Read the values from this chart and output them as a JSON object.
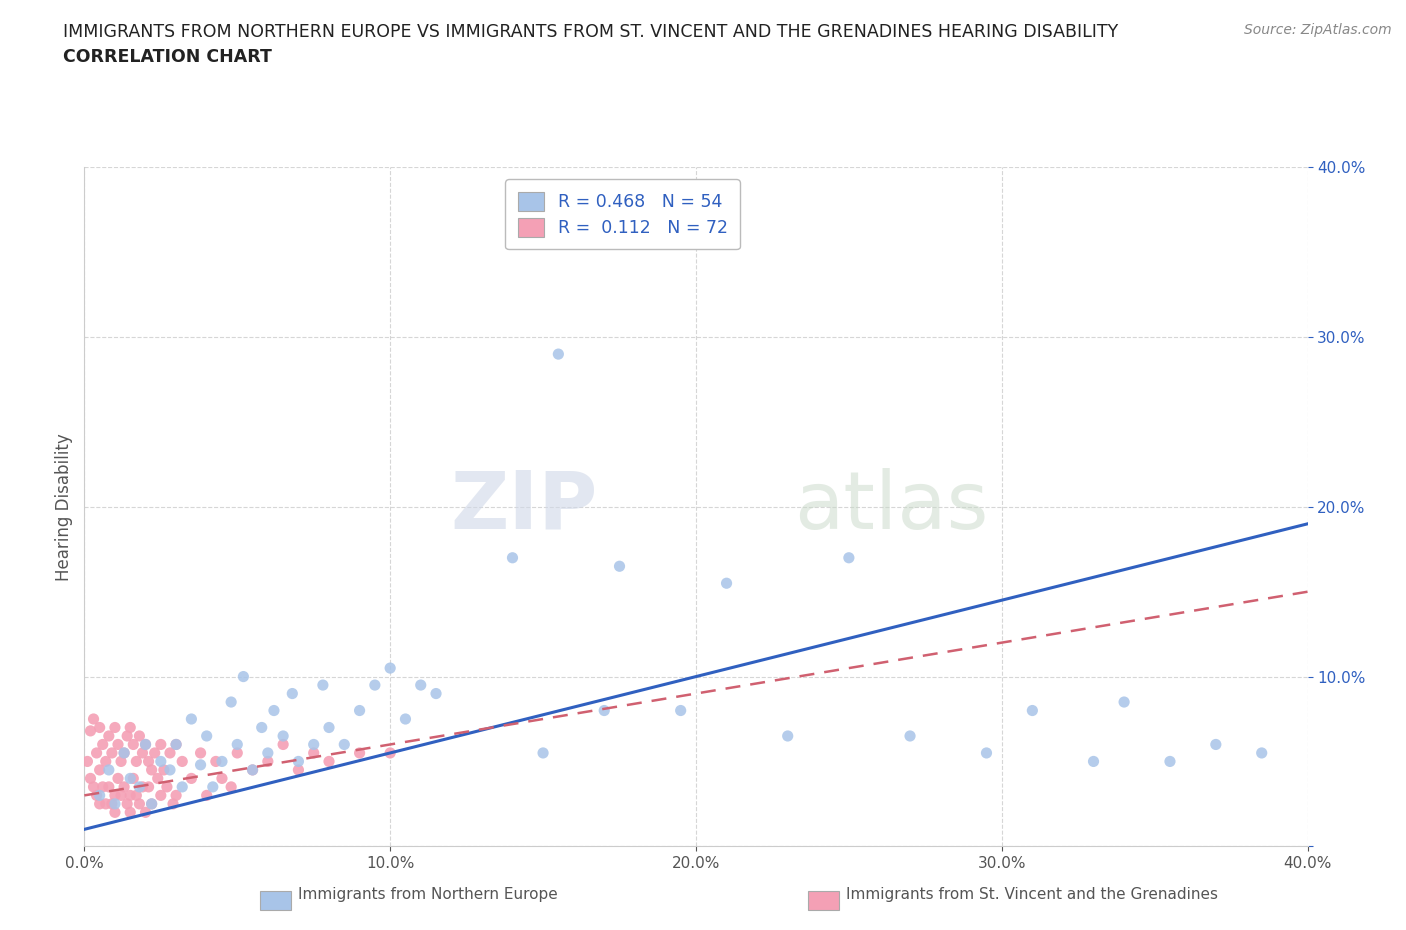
{
  "title_line1": "IMMIGRANTS FROM NORTHERN EUROPE VS IMMIGRANTS FROM ST. VINCENT AND THE GRENADINES HEARING DISABILITY",
  "title_line2": "CORRELATION CHART",
  "source": "Source: ZipAtlas.com",
  "watermark_zip": "ZIP",
  "watermark_atlas": "atlas",
  "ylabel": "Hearing Disability",
  "xlim": [
    0.0,
    0.4
  ],
  "ylim": [
    0.0,
    0.4
  ],
  "xticks": [
    0.0,
    0.1,
    0.2,
    0.3,
    0.4
  ],
  "yticks": [
    0.0,
    0.1,
    0.2,
    0.3,
    0.4
  ],
  "xtick_labels": [
    "0.0%",
    "10.0%",
    "20.0%",
    "30.0%",
    "40.0%"
  ],
  "ytick_labels": [
    "",
    "10.0%",
    "20.0%",
    "30.0%",
    "40.0%"
  ],
  "blue_R": 0.468,
  "blue_N": 54,
  "pink_R": 0.112,
  "pink_N": 72,
  "blue_color": "#a8c4e8",
  "pink_color": "#f4a0b5",
  "blue_line_color": "#3060c0",
  "pink_line_color": "#d06070",
  "legend_blue_label": "R = 0.468   N = 54",
  "legend_pink_label": "R =  0.112   N = 72",
  "blue_scatter_x": [
    0.005,
    0.008,
    0.01,
    0.013,
    0.015,
    0.018,
    0.02,
    0.022,
    0.025,
    0.028,
    0.03,
    0.032,
    0.035,
    0.038,
    0.04,
    0.042,
    0.045,
    0.048,
    0.05,
    0.052,
    0.055,
    0.058,
    0.06,
    0.062,
    0.065,
    0.068,
    0.07,
    0.075,
    0.078,
    0.08,
    0.085,
    0.09,
    0.095,
    0.1,
    0.105,
    0.11,
    0.115,
    0.14,
    0.15,
    0.17,
    0.21,
    0.23,
    0.25,
    0.155,
    0.175,
    0.195,
    0.27,
    0.295,
    0.31,
    0.33,
    0.34,
    0.355,
    0.37,
    0.385
  ],
  "blue_scatter_y": [
    0.03,
    0.045,
    0.025,
    0.055,
    0.04,
    0.035,
    0.06,
    0.025,
    0.05,
    0.045,
    0.06,
    0.035,
    0.075,
    0.048,
    0.065,
    0.035,
    0.05,
    0.085,
    0.06,
    0.1,
    0.045,
    0.07,
    0.055,
    0.08,
    0.065,
    0.09,
    0.05,
    0.06,
    0.095,
    0.07,
    0.06,
    0.08,
    0.095,
    0.105,
    0.075,
    0.095,
    0.09,
    0.17,
    0.055,
    0.08,
    0.155,
    0.065,
    0.17,
    0.29,
    0.165,
    0.08,
    0.065,
    0.055,
    0.08,
    0.05,
    0.085,
    0.05,
    0.06,
    0.055
  ],
  "pink_scatter_x": [
    0.001,
    0.002,
    0.002,
    0.003,
    0.003,
    0.004,
    0.004,
    0.005,
    0.005,
    0.005,
    0.006,
    0.006,
    0.007,
    0.007,
    0.008,
    0.008,
    0.009,
    0.009,
    0.01,
    0.01,
    0.01,
    0.011,
    0.011,
    0.012,
    0.012,
    0.013,
    0.013,
    0.014,
    0.014,
    0.015,
    0.015,
    0.015,
    0.016,
    0.016,
    0.017,
    0.017,
    0.018,
    0.018,
    0.019,
    0.019,
    0.02,
    0.02,
    0.021,
    0.021,
    0.022,
    0.022,
    0.023,
    0.024,
    0.025,
    0.025,
    0.026,
    0.027,
    0.028,
    0.029,
    0.03,
    0.03,
    0.032,
    0.035,
    0.038,
    0.04,
    0.043,
    0.045,
    0.048,
    0.05,
    0.055,
    0.06,
    0.065,
    0.07,
    0.075,
    0.08,
    0.09,
    0.1
  ],
  "pink_scatter_y": [
    0.05,
    0.068,
    0.04,
    0.075,
    0.035,
    0.055,
    0.03,
    0.07,
    0.045,
    0.025,
    0.06,
    0.035,
    0.05,
    0.025,
    0.065,
    0.035,
    0.055,
    0.025,
    0.07,
    0.03,
    0.02,
    0.06,
    0.04,
    0.05,
    0.03,
    0.055,
    0.035,
    0.065,
    0.025,
    0.07,
    0.03,
    0.02,
    0.06,
    0.04,
    0.05,
    0.03,
    0.065,
    0.025,
    0.055,
    0.035,
    0.06,
    0.02,
    0.05,
    0.035,
    0.045,
    0.025,
    0.055,
    0.04,
    0.03,
    0.06,
    0.045,
    0.035,
    0.055,
    0.025,
    0.06,
    0.03,
    0.05,
    0.04,
    0.055,
    0.03,
    0.05,
    0.04,
    0.035,
    0.055,
    0.045,
    0.05,
    0.06,
    0.045,
    0.055,
    0.05,
    0.055,
    0.055
  ],
  "grid_color": "#cccccc",
  "background_color": "#ffffff",
  "title_color": "#222222",
  "axis_color": "#3060c0",
  "tick_color": "#555555"
}
